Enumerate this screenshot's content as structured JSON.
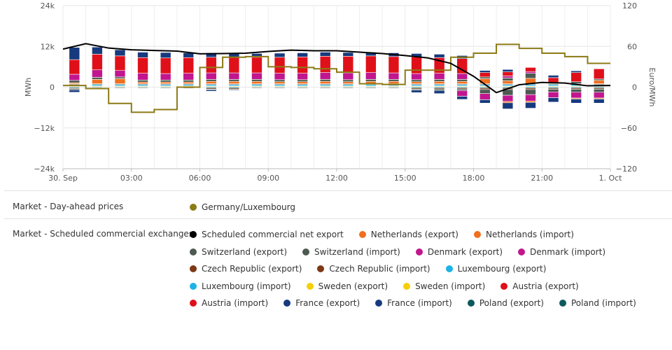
{
  "chart_data": {
    "type": "bar",
    "stacked": true,
    "left_axis": {
      "label": "MWh",
      "min": -24000,
      "max": 24000,
      "ticks": [
        -24000,
        -12000,
        0,
        12000,
        24000
      ],
      "tick_labels": [
        "−24k",
        "−12k",
        "0",
        "12k",
        "24k"
      ]
    },
    "right_axis": {
      "label": "Euro/MWh",
      "min": -120,
      "max": 120,
      "ticks": [
        -120,
        -60,
        0,
        60,
        120
      ],
      "tick_labels": [
        "−120",
        "−60",
        "0",
        "60",
        "120"
      ]
    },
    "x_axis": {
      "hours": [
        0,
        1,
        2,
        3,
        4,
        5,
        6,
        7,
        8,
        9,
        10,
        11,
        12,
        13,
        14,
        15,
        16,
        17,
        18,
        19,
        20,
        21,
        22,
        23
      ],
      "ticks": [
        0,
        3,
        6,
        9,
        12,
        15,
        18,
        21,
        24
      ],
      "tick_labels": [
        "30. Sep",
        "03:00",
        "06:00",
        "09:00",
        "12:00",
        "15:00",
        "18:00",
        "21:00",
        "1. Oct"
      ]
    },
    "positive_stack_order": [
      "Poland",
      "Sweden",
      "Luxembourg",
      "Czech Republic",
      "Netherlands",
      "Switzerland",
      "Denmark",
      "Austria",
      "France"
    ],
    "exports": {
      "France": [
        3600,
        2100,
        1800,
        1600,
        1600,
        1400,
        1300,
        1200,
        1100,
        1200,
        1200,
        1200,
        1100,
        1100,
        1100,
        1000,
        1000,
        900,
        600,
        700,
        0,
        700,
        500,
        0
      ],
      "Austria": [
        4300,
        4600,
        4300,
        4600,
        4600,
        4600,
        4600,
        4600,
        4600,
        4700,
        4800,
        4800,
        4900,
        4900,
        4800,
        4900,
        4600,
        4400,
        1300,
        1200,
        1200,
        1400,
        2700,
        3000
      ],
      "Denmark": [
        1800,
        2200,
        1900,
        2000,
        1900,
        2000,
        1900,
        1900,
        1900,
        1900,
        1900,
        2000,
        2000,
        2000,
        1900,
        1800,
        1800,
        1700,
        0,
        600,
        500,
        0,
        0,
        0
      ],
      "Switzerland": [
        700,
        600,
        500,
        600,
        600,
        600,
        600,
        600,
        600,
        600,
        600,
        600,
        600,
        600,
        600,
        600,
        600,
        600,
        500,
        800,
        1500,
        400,
        600,
        400
      ],
      "Netherlands": [
        300,
        1300,
        1500,
        500,
        500,
        500,
        700,
        700,
        700,
        600,
        600,
        700,
        600,
        700,
        700,
        600,
        700,
        700,
        1500,
        900,
        1600,
        0,
        0,
        1000
      ],
      "Czech Republic": [
        200,
        200,
        200,
        200,
        200,
        200,
        200,
        200,
        200,
        200,
        200,
        200,
        200,
        200,
        200,
        200,
        200,
        200,
        200,
        200,
        200,
        200,
        200,
        200
      ],
      "Luxembourg": [
        400,
        400,
        400,
        400,
        400,
        400,
        400,
        400,
        400,
        400,
        400,
        400,
        400,
        400,
        400,
        400,
        400,
        400,
        400,
        400,
        400,
        400,
        400,
        400
      ],
      "Sweden": [
        200,
        200,
        200,
        200,
        200,
        200,
        200,
        200,
        200,
        200,
        200,
        200,
        200,
        200,
        200,
        200,
        200,
        200,
        200,
        200,
        200,
        200,
        200,
        200
      ],
      "Poland": [
        200,
        200,
        200,
        200,
        200,
        200,
        200,
        200,
        200,
        200,
        200,
        200,
        200,
        200,
        200,
        200,
        200,
        200,
        200,
        200,
        200,
        200,
        200,
        200
      ]
    },
    "imports": {
      "Poland": [
        -300,
        -200,
        -200,
        -200,
        -200,
        -200,
        -300,
        -300,
        -200,
        -200,
        -200,
        -200,
        -200,
        -200,
        -200,
        -300,
        -300,
        -300,
        -300,
        -300,
        -300,
        -300,
        -300,
        -300
      ],
      "Czech Republic": [
        -200,
        -200,
        -200,
        -200,
        -200,
        -200,
        -300,
        -300,
        -200,
        -200,
        -200,
        -200,
        -200,
        -200,
        -200,
        -300,
        -300,
        -300,
        -400,
        -400,
        -400,
        -300,
        -300,
        -300
      ],
      "Switzerland": [
        -300,
        -100,
        -100,
        -100,
        -100,
        -100,
        -200,
        -200,
        -100,
        -100,
        -100,
        -100,
        -100,
        -100,
        -100,
        -300,
        -400,
        -400,
        -1200,
        -1700,
        -1500,
        -800,
        -900,
        -900
      ],
      "Denmark": [
        0,
        0,
        0,
        0,
        0,
        0,
        0,
        0,
        0,
        0,
        0,
        0,
        0,
        0,
        0,
        0,
        0,
        -1700,
        -1800,
        -1800,
        -1900,
        -1700,
        -1700,
        -1700
      ],
      "Netherlands": [
        0,
        0,
        0,
        0,
        0,
        0,
        0,
        0,
        0,
        0,
        0,
        0,
        0,
        0,
        0,
        0,
        0,
        0,
        0,
        -400,
        -400,
        0,
        -300,
        -300
      ],
      "France": [
        -700,
        0,
        0,
        0,
        0,
        0,
        -400,
        -200,
        -100,
        -100,
        -100,
        -100,
        -100,
        -100,
        -100,
        -700,
        -900,
        -900,
        -1000,
        -1800,
        -1700,
        -1300,
        -1200,
        -1200
      ]
    },
    "series": [
      {
        "name": "Scheduled commercial net export",
        "axis": "left",
        "x": [
          0,
          1,
          2,
          3,
          4,
          5,
          6,
          7,
          8,
          9,
          10,
          11,
          12,
          13,
          14,
          15,
          16,
          17,
          18,
          19,
          20,
          21,
          22,
          23,
          24
        ],
        "values": [
          11200,
          12800,
          11500,
          11000,
          10800,
          10600,
          9800,
          9900,
          10000,
          10500,
          10900,
          10700,
          10700,
          10300,
          9900,
          9300,
          8600,
          7000,
          3200,
          -1600,
          700,
          1400,
          1200,
          400,
          500
        ]
      },
      {
        "name": "Germany/Luxembourg",
        "axis": "right",
        "step": true,
        "x": [
          0,
          1,
          2,
          3,
          4,
          5,
          6,
          7,
          8,
          9,
          10,
          11,
          12,
          13,
          14,
          15,
          16,
          17,
          18,
          19,
          20,
          21,
          22,
          23,
          24
        ],
        "values": [
          2.5,
          -2,
          -24,
          -37,
          -33,
          0,
          29,
          44,
          45,
          30,
          29,
          27,
          22,
          5,
          4,
          25,
          25,
          44,
          50,
          63,
          57,
          50,
          45,
          35,
          35
        ]
      }
    ]
  },
  "legend": {
    "groups": [
      {
        "label": "Market - Day-ahead prices",
        "items": [
          {
            "name": "Germany/Luxembourg",
            "color": "#8c7a15"
          }
        ]
      },
      {
        "label": "Market - Scheduled commercial exchanges",
        "items": [
          {
            "name": "Scheduled commercial net export",
            "color": "#000000"
          },
          {
            "name": "Netherlands (export)",
            "color": "#f06f1f"
          },
          {
            "name": "Netherlands (import)",
            "color": "#f06f1f"
          },
          {
            "name": "Switzerland (export)",
            "color": "#4d5a52"
          },
          {
            "name": "Switzerland (import)",
            "color": "#4d5a52"
          },
          {
            "name": "Denmark (export)",
            "color": "#c1168f"
          },
          {
            "name": "Denmark (import)",
            "color": "#c1168f"
          },
          {
            "name": "Czech Republic (export)",
            "color": "#7f3815"
          },
          {
            "name": "Czech Republic (import)",
            "color": "#7f3815"
          },
          {
            "name": "Luxembourg (export)",
            "color": "#1eb3e6"
          },
          {
            "name": "Luxembourg (import)",
            "color": "#1eb3e6"
          },
          {
            "name": "Sweden (export)",
            "color": "#f6cf0a"
          },
          {
            "name": "Sweden (import)",
            "color": "#f6cf0a"
          },
          {
            "name": "Austria (export)",
            "color": "#e0101a"
          },
          {
            "name": "Austria (import)",
            "color": "#e0101a"
          },
          {
            "name": "France (export)",
            "color": "#173a7e"
          },
          {
            "name": "France (import)",
            "color": "#173a7e"
          },
          {
            "name": "Poland (export)",
            "color": "#0d5a5e"
          },
          {
            "name": "Poland (import)",
            "color": "#0d5a5e"
          }
        ]
      }
    ]
  },
  "colors": {
    "France": "#173a7e",
    "Austria": "#e0101a",
    "Denmark": "#c1168f",
    "Switzerland": "#4d5a52",
    "Netherlands": "#f06f1f",
    "Czech Republic": "#7f3815",
    "Luxembourg": "#1eb3e6",
    "Sweden": "#f6cf0a",
    "Poland": "#0d5a5e",
    "net_line": "#000000",
    "price_line": "#8c7a15",
    "grid": "#e6e6e6"
  }
}
